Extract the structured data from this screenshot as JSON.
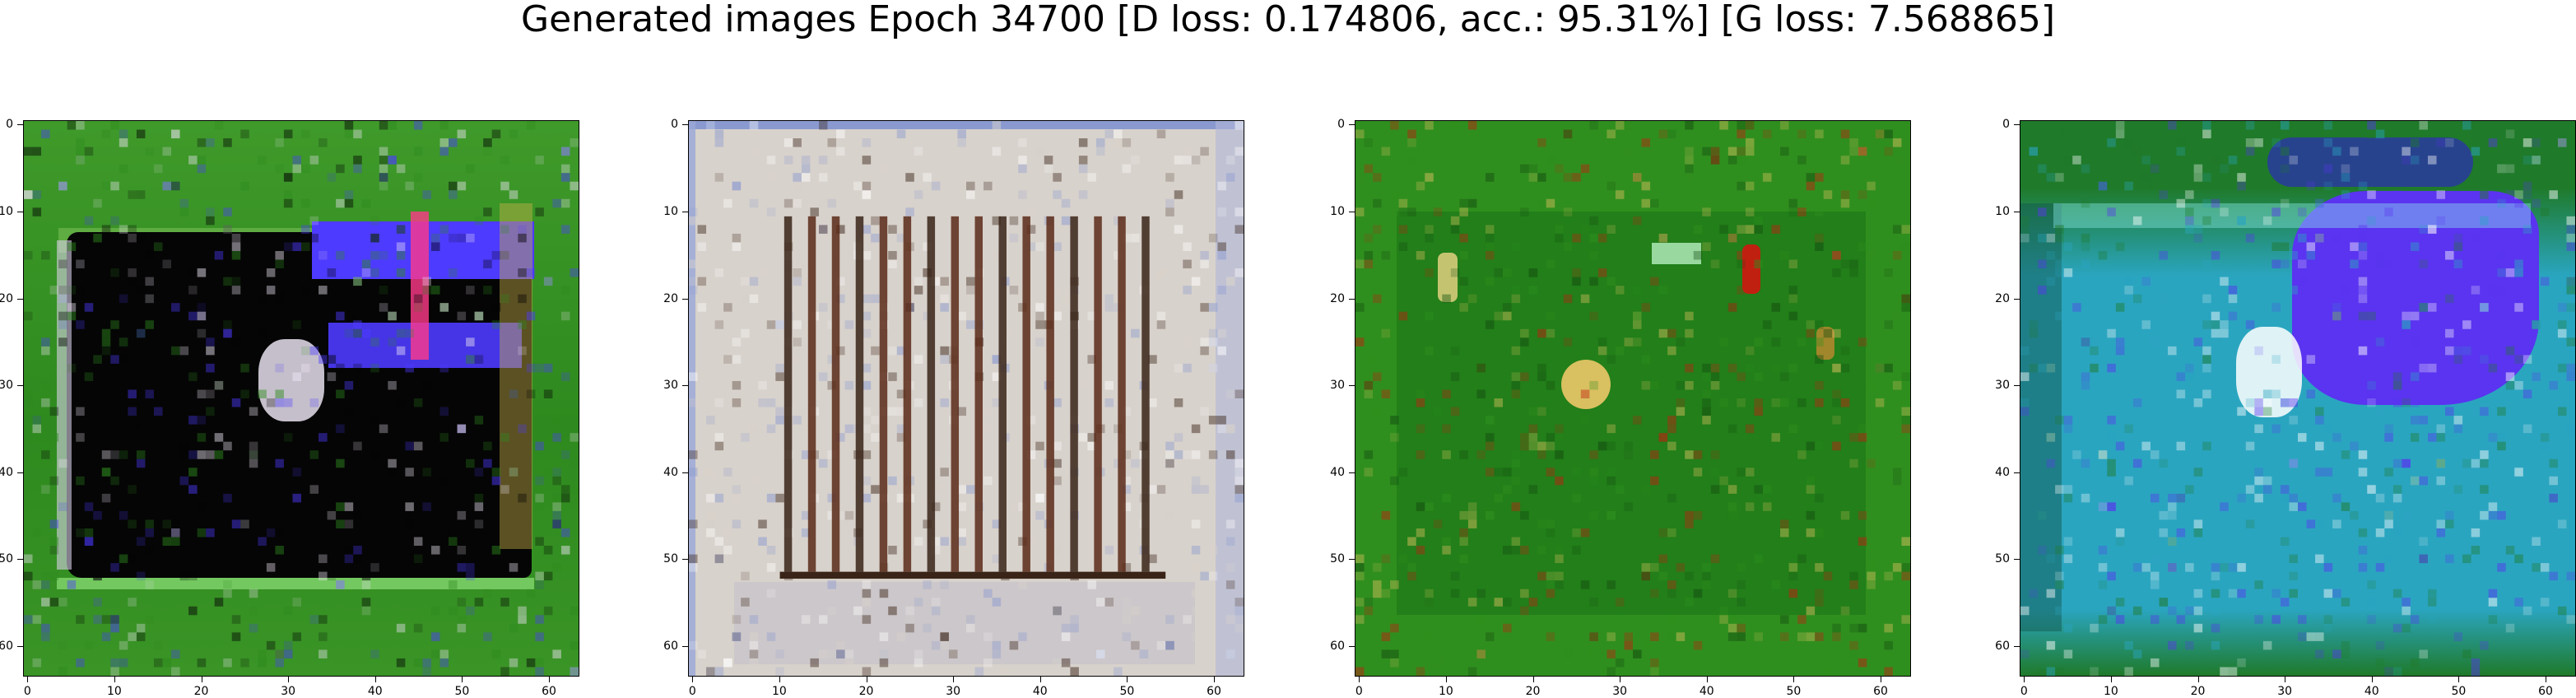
{
  "figure_title": "Generated images Epoch 34700 [D loss: 0.174806, acc.: 95.31%] [G loss: 7.568865]",
  "chart_data": [
    {
      "type": "heatmap",
      "panel": 1,
      "xlim": [
        -0.5,
        63.5
      ],
      "ylim": [
        63.5,
        -0.5
      ],
      "xticks": [
        0,
        10,
        20,
        30,
        40,
        50,
        60
      ],
      "yticks": [
        0,
        10,
        20,
        30,
        40,
        50,
        60
      ],
      "dominant_colors": [
        "#2e8a1e",
        "#050505",
        "#4d3bff",
        "#e8e0ee"
      ]
    },
    {
      "type": "heatmap",
      "panel": 2,
      "xlim": [
        -0.5,
        63.5
      ],
      "ylim": [
        63.5,
        -0.5
      ],
      "xticks": [
        0,
        10,
        20,
        30,
        40,
        50,
        60
      ],
      "yticks": [
        0,
        10,
        20,
        30,
        40,
        50,
        60
      ],
      "dominant_colors": [
        "#d8d2cc",
        "#3a2418",
        "#ffffff",
        "#8a9ad0"
      ]
    },
    {
      "type": "heatmap",
      "panel": 3,
      "xlim": [
        -0.5,
        63.5
      ],
      "ylim": [
        63.5,
        -0.5
      ],
      "xticks": [
        0,
        10,
        20,
        30,
        40,
        50,
        60
      ],
      "yticks": [
        0,
        10,
        20,
        30,
        40,
        50,
        60
      ],
      "dominant_colors": [
        "#2f8f1e",
        "#134a10",
        "#d9c060",
        "#c02010"
      ]
    },
    {
      "type": "heatmap",
      "panel": 4,
      "xlim": [
        -0.5,
        63.5
      ],
      "ylim": [
        63.5,
        -0.5
      ],
      "xticks": [
        0,
        10,
        20,
        30,
        40,
        50,
        60
      ],
      "yticks": [
        0,
        10,
        20,
        30,
        40,
        50,
        60
      ],
      "dominant_colors": [
        "#2aa5c0",
        "#1f7a2a",
        "#5a34f0",
        "#ffffff"
      ]
    }
  ]
}
